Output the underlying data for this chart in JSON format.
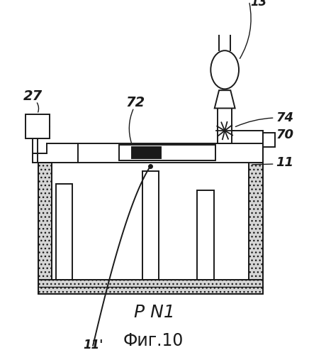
{
  "title": "Фиг.10",
  "label_pn1": "P N1",
  "label_27": "27",
  "label_72": "72",
  "label_74": "74",
  "label_70": "70",
  "label_11": "11",
  "label_11p": "11'",
  "label_13p": "13'",
  "bg_color": "#ffffff",
  "line_color": "#1a1a1a",
  "dark_fill": "#1a1a1a",
  "dot_color": "#c8c8c8"
}
